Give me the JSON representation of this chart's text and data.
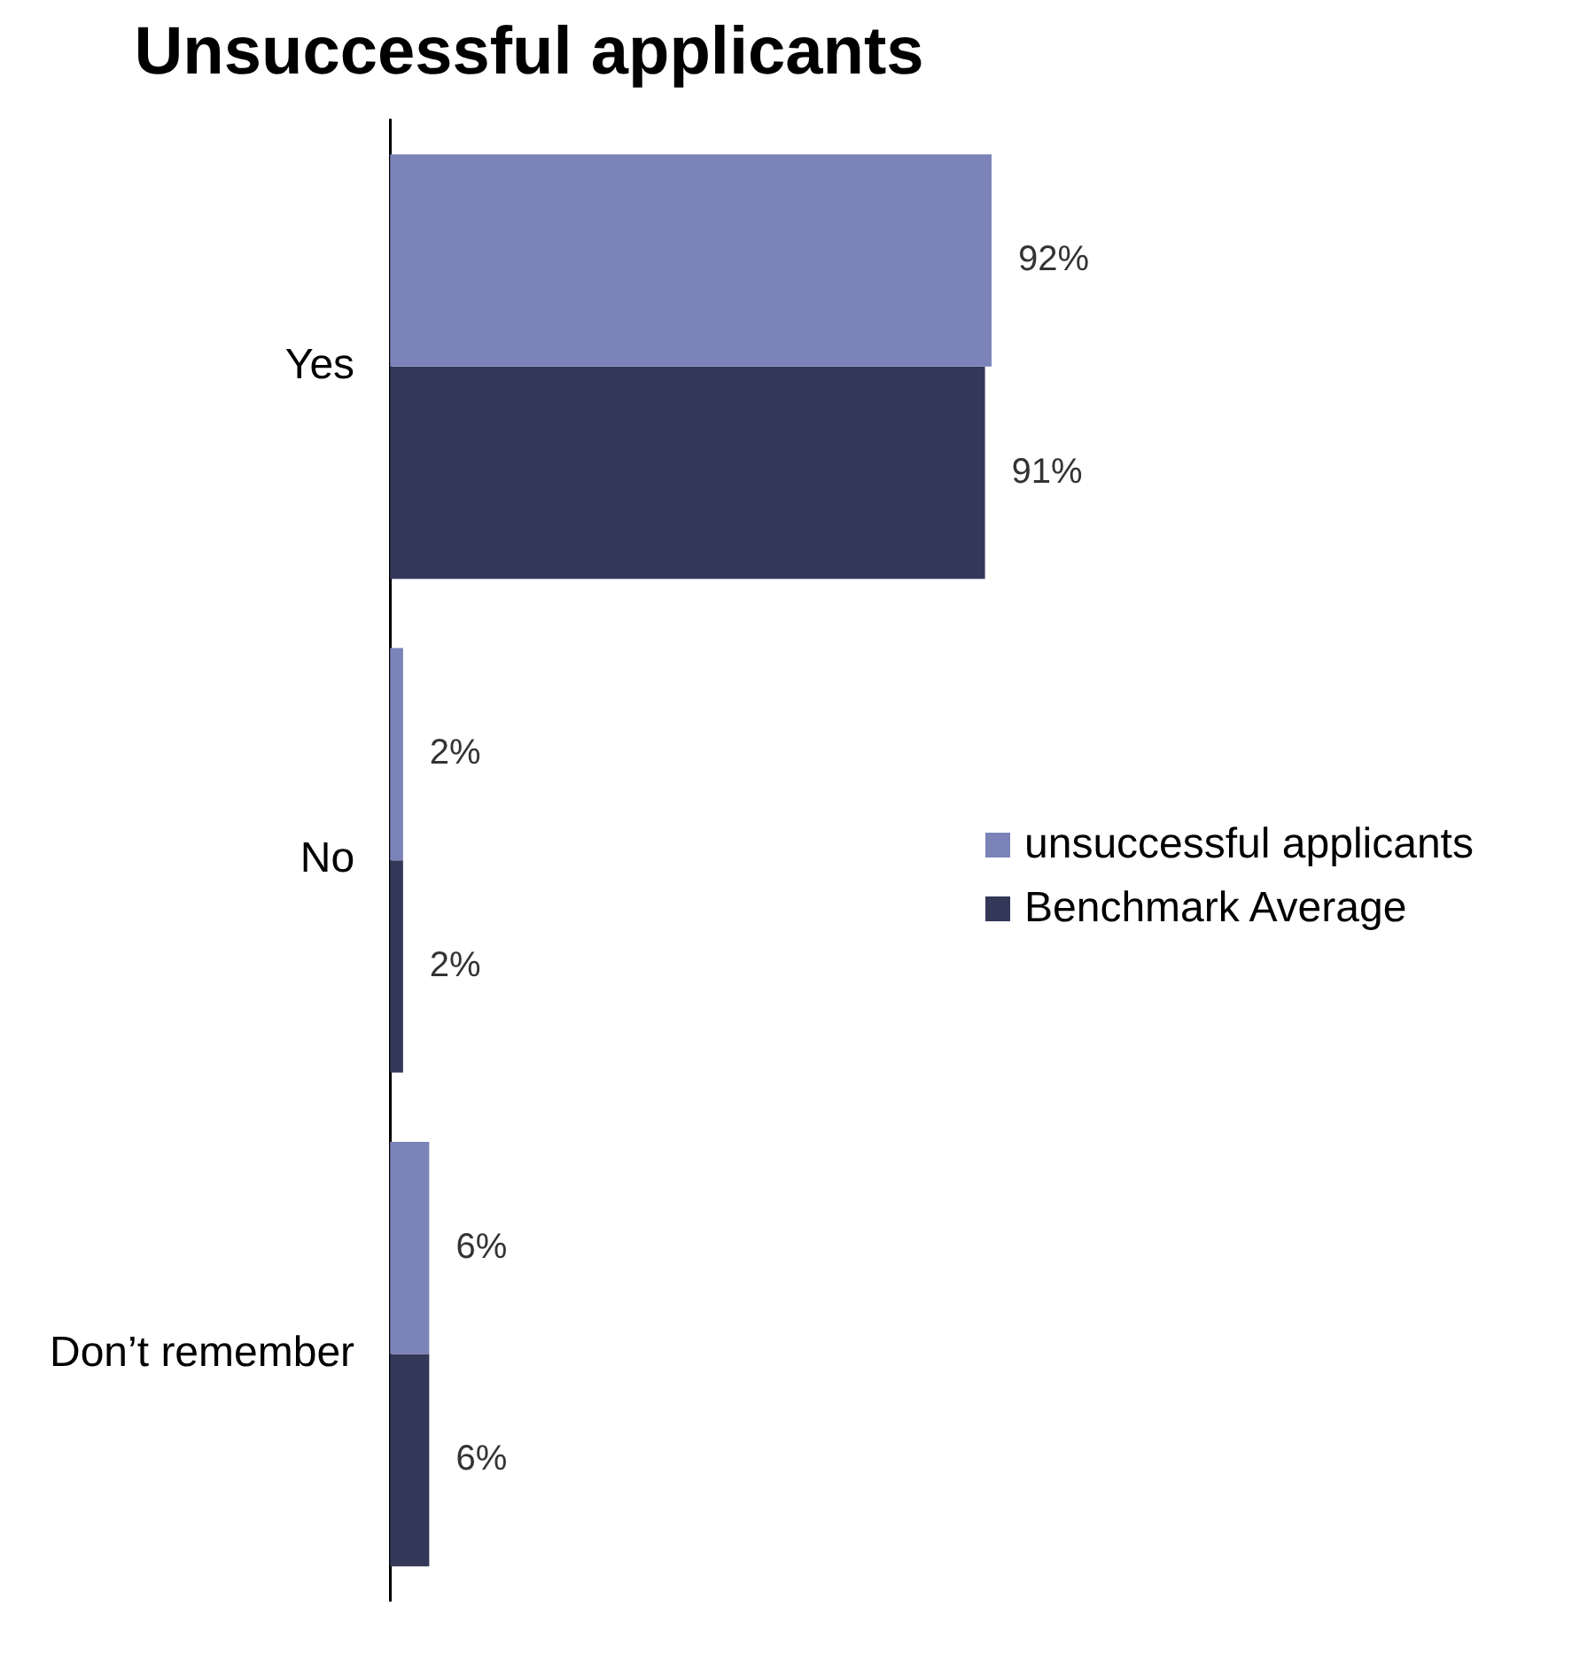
{
  "chart_data": {
    "type": "bar",
    "orientation": "horizontal",
    "title": "Unsuccessful applicants",
    "categories": [
      "Yes",
      "No",
      "Don’t remember"
    ],
    "series": [
      {
        "name": "unsuccessful applicants",
        "color": "#7b83b8",
        "values": [
          92,
          2,
          6
        ],
        "value_labels": [
          "92%",
          "2%",
          "6%"
        ]
      },
      {
        "name": "Benchmark Average",
        "color": "#333758",
        "values": [
          91,
          2,
          6
        ],
        "value_labels": [
          "91%",
          "2%",
          "6%"
        ]
      }
    ],
    "legend": "right"
  }
}
